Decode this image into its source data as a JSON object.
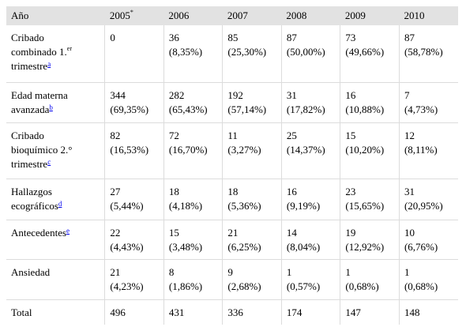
{
  "table": {
    "headers": [
      "Año",
      "2005",
      "2006",
      "2007",
      "2008",
      "2009",
      "2010"
    ],
    "header_2005_mark": "*",
    "rows": [
      {
        "label": [
          "Cribado",
          "combinado 1.",
          "trimestre"
        ],
        "label_sup": "er",
        "footnote": "a",
        "counts": [
          "0",
          "36",
          "85",
          "87",
          "73",
          "87"
        ],
        "pcts": [
          "",
          "(8,35%)",
          "(25,30%)",
          "(50,00%)",
          "(49,66%)",
          "(58,78%)"
        ]
      },
      {
        "label": [
          "Edad materna",
          "avanzada"
        ],
        "footnote": "b",
        "counts": [
          "344",
          "282",
          "192",
          "31",
          "16",
          "7"
        ],
        "pcts": [
          "(69,35%)",
          "(65,43%)",
          "(57,14%)",
          "(17,82%)",
          "(10,88%)",
          "(4,73%)"
        ]
      },
      {
        "label": [
          "Cribado",
          "bioquímico 2.°",
          "trimestre"
        ],
        "footnote": "c",
        "counts": [
          "82",
          "72",
          "11",
          "25",
          "15",
          "12"
        ],
        "pcts": [
          "(16,53%)",
          "(16,70%)",
          "(3,27%)",
          "(14,37%)",
          "(10,20%)",
          "(8,11%)"
        ]
      },
      {
        "label": [
          "Hallazgos",
          "ecográficos"
        ],
        "footnote": "d",
        "counts": [
          "27",
          "18",
          "18",
          "16",
          "23",
          "31"
        ],
        "pcts": [
          "(5,44%)",
          "(4,18%)",
          "(5,36%)",
          "(9,19%)",
          "(15,65%)",
          "(20,95%)"
        ]
      },
      {
        "label": [
          "Antecedentes"
        ],
        "footnote": "e",
        "counts": [
          "22",
          "15",
          "21",
          "14",
          "19",
          "10"
        ],
        "pcts": [
          "(4,43%)",
          "(3,48%)",
          "(6,25%)",
          "(8,04%)",
          "(12,92%)",
          "(6,76%)"
        ]
      },
      {
        "label": [
          "Ansiedad"
        ],
        "counts": [
          "21",
          "8",
          "9",
          "1",
          "1",
          "1"
        ],
        "pcts": [
          "(4,23%)",
          "(1,86%)",
          "(2,68%)",
          "(0,57%)",
          "(0,68%)",
          "(0,68%)"
        ]
      }
    ],
    "total": {
      "label": "Total",
      "counts": [
        "496",
        "431",
        "336",
        "174",
        "147",
        "148"
      ]
    }
  }
}
